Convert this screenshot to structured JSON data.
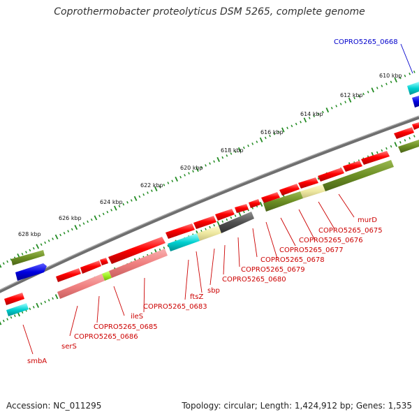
{
  "title": "Coprothermobacter proteolyticus DSM 5265, complete genome",
  "footer": {
    "accession": "Accession: NC_011295",
    "summary": "Topology: circular; Length: 1,424,912 bp; Genes: 1,535"
  },
  "colors": {
    "cds": "#ff0000",
    "cds_pink": "#f08080",
    "olive": "#6b8e23",
    "blue": "#0000e0",
    "cyan": "#00d0d0",
    "khaki": "#eee8a0",
    "dark_gray": "#505050",
    "yellow_green": "#a0f020",
    "tick": "#228b22",
    "backbone": "#808080",
    "label_red": "#cc0000",
    "label_blue": "#0000cc"
  },
  "kbp_labels": [
    "610 kbp",
    "612 kbp",
    "614 kbp",
    "616 kbp",
    "618 kbp",
    "620 kbp",
    "622 kbp",
    "624 kbp",
    "626 kbp",
    "628 kbp"
  ],
  "gene_labels": [
    {
      "text": "COPRO5265_0668",
      "color": "label_blue"
    },
    {
      "text": "murD",
      "color": "label_red"
    },
    {
      "text": "COPRO5265_0675",
      "color": "label_red"
    },
    {
      "text": "COPRO5265_0676",
      "color": "label_red"
    },
    {
      "text": "COPRO5265_0677",
      "color": "label_red"
    },
    {
      "text": "COPRO5265_0678",
      "color": "label_red"
    },
    {
      "text": "COPRO5265_0679",
      "color": "label_red"
    },
    {
      "text": "COPRO5265_0680",
      "color": "label_red"
    },
    {
      "text": "sbp",
      "color": "label_red"
    },
    {
      "text": "ftsZ",
      "color": "label_red"
    },
    {
      "text": "COPRO5265_0683",
      "color": "label_red"
    },
    {
      "text": "ileS",
      "color": "label_red"
    },
    {
      "text": "COPRO5265_0685",
      "color": "label_red"
    },
    {
      "text": "COPRO5265_0686",
      "color": "label_red"
    },
    {
      "text": "serS",
      "color": "label_red"
    },
    {
      "text": "smbA",
      "color": "label_red"
    }
  ]
}
